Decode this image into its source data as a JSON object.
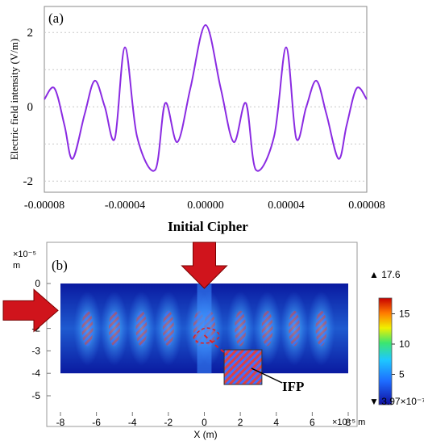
{
  "chart_data": [
    {
      "type": "line",
      "panel_label": "(a)",
      "xlabel": "",
      "ylabel": "Electric field intensity (V/m)",
      "xlim": [
        -8e-05,
        8e-05
      ],
      "ylim": [
        -2.3,
        2.7
      ],
      "x_ticks": [
        "-0.00008",
        "-0.00004",
        "0.00000",
        "0.00004",
        "0.00008"
      ],
      "x_tick_values": [
        -8e-05,
        -4e-05,
        0,
        4e-05,
        8e-05
      ],
      "y_ticks": [
        "-2",
        "0",
        "2"
      ],
      "y_tick_values": [
        -2,
        0,
        2
      ],
      "grid": "horizontal dotted",
      "color": "#8a2be2",
      "series": [
        {
          "x": [
            -8e-05,
            -7.5e-05,
            -7e-05,
            -6.6e-05,
            -6e-05,
            -5.5e-05,
            -5e-05,
            -4.5e-05,
            -4e-05,
            -3.4e-05,
            -2.5e-05,
            -2e-05,
            -1.4e-05,
            -7.5e-06,
            0,
            7.5e-06,
            1.4e-05,
            2e-05,
            2.5e-05,
            3.4e-05,
            4e-05,
            4.5e-05,
            5e-05,
            5.5e-05,
            6e-05,
            6.6e-05,
            7e-05,
            7.5e-05,
            8e-05
          ],
          "y": [
            0.2,
            0.5,
            -0.5,
            -1.4,
            -0.2,
            0.7,
            0.0,
            -0.85,
            1.6,
            -0.8,
            -1.7,
            0.1,
            -0.95,
            0.5,
            2.2,
            0.5,
            -0.95,
            0.1,
            -1.7,
            -0.8,
            1.6,
            -0.85,
            0.0,
            0.7,
            -0.2,
            -1.4,
            -0.5,
            0.5,
            0.2
          ]
        }
      ]
    },
    {
      "type": "heatmap",
      "panel_label": "(b)",
      "xlabel": "X (m)",
      "x_exponent": "×10⁻⁵ m",
      "y_exponent": "×10⁻⁵",
      "y_unit": "m",
      "xlim": [
        -8,
        8
      ],
      "ylim": [
        -5.5,
        0.5
      ],
      "x_ticks": [
        "-8",
        "-6",
        "-4",
        "-2",
        "0",
        "2",
        "4",
        "6",
        "8"
      ],
      "y_ticks": [
        "0",
        "-1",
        "-2",
        "-3",
        "-4",
        "-5"
      ],
      "field_region": {
        "x": [
          -8,
          8
        ],
        "y": [
          -4,
          0
        ]
      },
      "colorbar": {
        "max_label": "▲ 17.6",
        "min_label": "▼ 3.97×10⁻⁷",
        "ticks": [
          "15",
          "10",
          "5"
        ],
        "tick_values": [
          15,
          10,
          5
        ],
        "range": [
          0,
          17.6
        ]
      },
      "annotations": {
        "arrow_top_label": "Initial Cipher",
        "ifp_label": "IFP"
      },
      "colors": {
        "arrow": "#d0141c",
        "field_low": "#0a1aa0",
        "field_mid": "#3c8cff",
        "field_high": "#ff3000"
      }
    }
  ]
}
